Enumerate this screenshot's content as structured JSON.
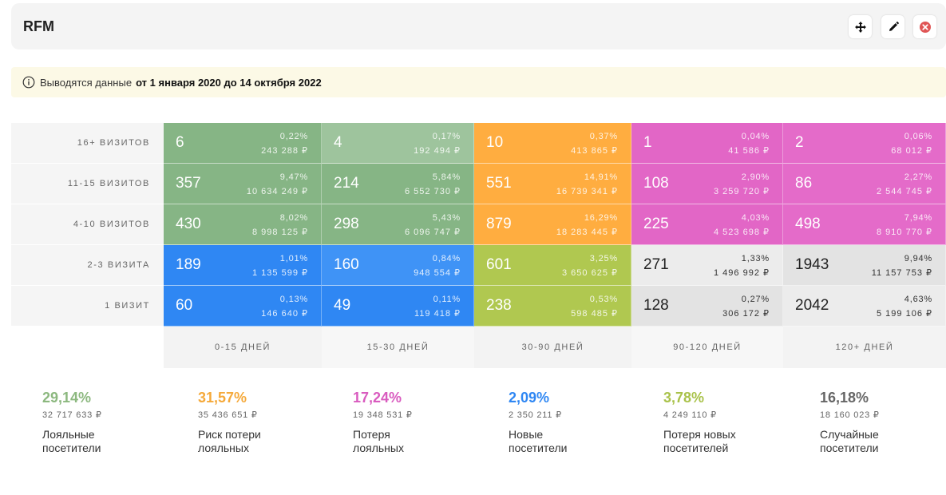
{
  "header": {
    "title": "RFM"
  },
  "notice": {
    "text": "Выводятся данные",
    "range": "от 1 января 2020 до 14 октября 2022"
  },
  "rows": [
    {
      "label": "16+ визитов",
      "cells": [
        {
          "count": "6",
          "pct": "0,22%",
          "sum": "243 288 ₽"
        },
        {
          "count": "4",
          "pct": "0,17%",
          "sum": "192 494 ₽"
        },
        {
          "count": "10",
          "pct": "0,37%",
          "sum": "413 865 ₽"
        },
        {
          "count": "1",
          "pct": "0,04%",
          "sum": "41 586 ₽"
        },
        {
          "count": "2",
          "pct": "0,06%",
          "sum": "68 012 ₽"
        }
      ]
    },
    {
      "label": "11-15 визитов",
      "cells": [
        {
          "count": "357",
          "pct": "9,47%",
          "sum": "10 634 249 ₽"
        },
        {
          "count": "214",
          "pct": "5,84%",
          "sum": "6 552 730 ₽"
        },
        {
          "count": "551",
          "pct": "14,91%",
          "sum": "16 739 341 ₽"
        },
        {
          "count": "108",
          "pct": "2,90%",
          "sum": "3 259 720 ₽"
        },
        {
          "count": "86",
          "pct": "2,27%",
          "sum": "2 544 745 ₽"
        }
      ]
    },
    {
      "label": "4-10 визитов",
      "cells": [
        {
          "count": "430",
          "pct": "8,02%",
          "sum": "8 998 125 ₽"
        },
        {
          "count": "298",
          "pct": "5,43%",
          "sum": "6 096 747 ₽"
        },
        {
          "count": "879",
          "pct": "16,29%",
          "sum": "18 283 445 ₽"
        },
        {
          "count": "225",
          "pct": "4,03%",
          "sum": "4 523 698 ₽"
        },
        {
          "count": "498",
          "pct": "7,94%",
          "sum": "8 910 770 ₽"
        }
      ]
    },
    {
      "label": "2-3 визита",
      "cells": [
        {
          "count": "189",
          "pct": "1,01%",
          "sum": "1 135 599 ₽"
        },
        {
          "count": "160",
          "pct": "0,84%",
          "sum": "948 554 ₽"
        },
        {
          "count": "601",
          "pct": "3,25%",
          "sum": "3 650 625 ₽"
        },
        {
          "count": "271",
          "pct": "1,33%",
          "sum": "1 496 992 ₽"
        },
        {
          "count": "1943",
          "pct": "9,94%",
          "sum": "11 157 753 ₽"
        }
      ]
    },
    {
      "label": "1 визит",
      "cells": [
        {
          "count": "60",
          "pct": "0,13%",
          "sum": "146 640 ₽"
        },
        {
          "count": "49",
          "pct": "0,11%",
          "sum": "119 418 ₽"
        },
        {
          "count": "238",
          "pct": "0,53%",
          "sum": "598 485 ₽"
        },
        {
          "count": "128",
          "pct": "0,27%",
          "sum": "306 172 ₽"
        },
        {
          "count": "2042",
          "pct": "4,63%",
          "sum": "5 199 106 ₽"
        }
      ]
    }
  ],
  "columns": [
    "0-15 дней",
    "15-30 дней",
    "30-90 дней",
    "90-120 дней",
    "120+ дней"
  ],
  "segments": [
    {
      "pct": "29,14%",
      "sum": "32 717 633 ₽",
      "name_line1": "Лояльные",
      "name_line2": "посетители",
      "color": "#8cb87f"
    },
    {
      "pct": "31,57%",
      "sum": "35 436 651 ₽",
      "name_line1": "Риск потери",
      "name_line2": "лояльных",
      "color": "#f5a93a"
    },
    {
      "pct": "17,24%",
      "sum": "19 348 531 ₽",
      "name_line1": "Потеря",
      "name_line2": "лояльных",
      "color": "#d95bbf"
    },
    {
      "pct": "2,09%",
      "sum": "2 350 211 ₽",
      "name_line1": "Новые",
      "name_line2": "посетители",
      "color": "#2f87f3"
    },
    {
      "pct": "3,78%",
      "sum": "4 249 110 ₽",
      "name_line1": "Потеря новых",
      "name_line2": "посетителей",
      "color": "#a9c24a"
    },
    {
      "pct": "16,18%",
      "sum": "18 160 023 ₽",
      "name_line1": "Случайные",
      "name_line2": "посетители",
      "color": "#666666"
    }
  ],
  "icons": {
    "move": "move-icon",
    "edit": "pencil-icon",
    "close": "close-icon",
    "info": "info-icon"
  }
}
